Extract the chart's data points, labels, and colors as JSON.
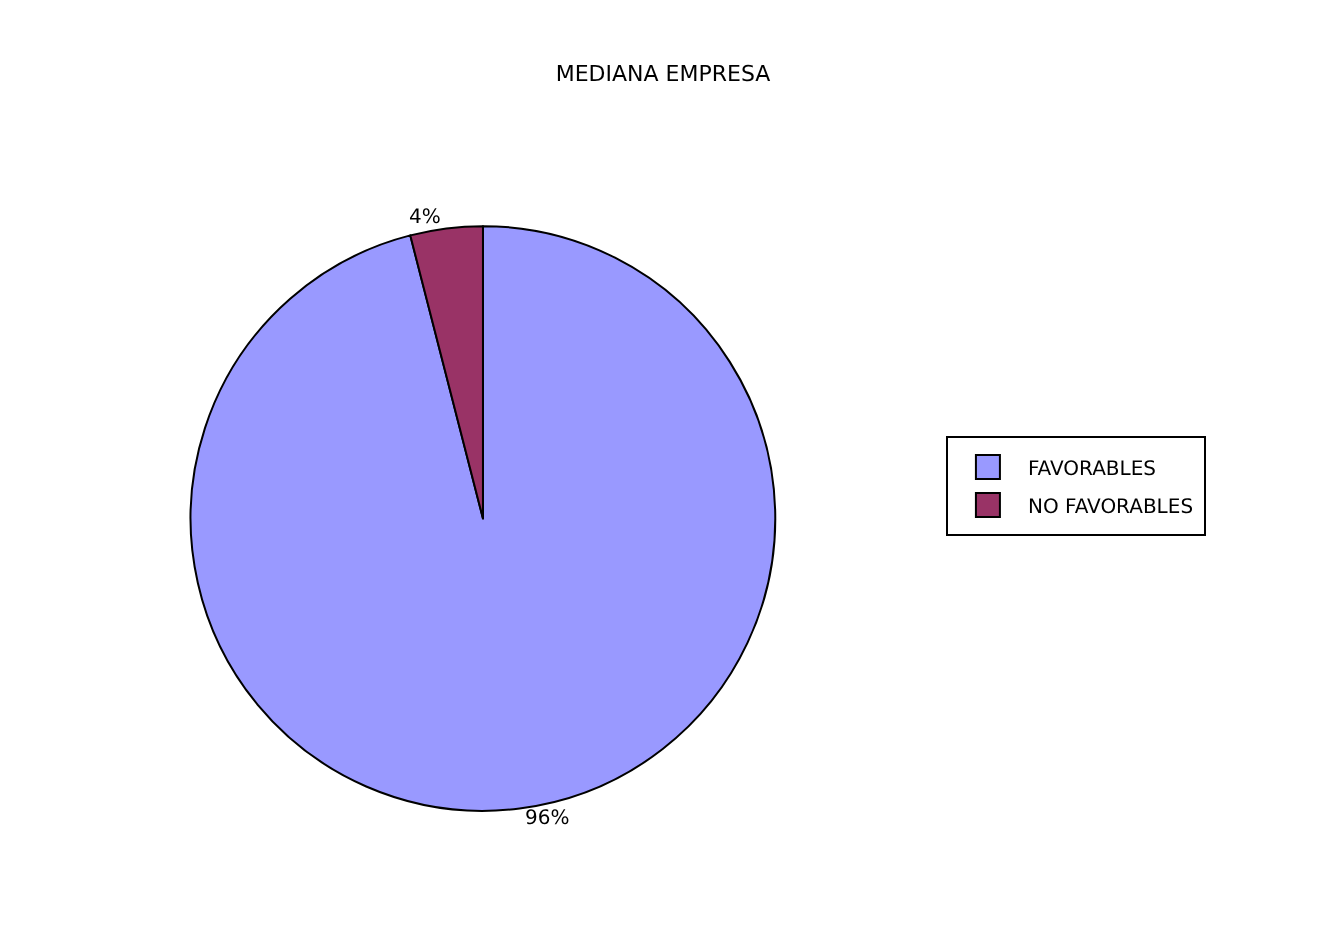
{
  "chart_data": {
    "type": "pie",
    "title": "MEDIANA EMPRESA",
    "categories": [
      "FAVORABLES",
      "NO FAVORABLES"
    ],
    "values": [
      96,
      4
    ],
    "colors": [
      "#9999ff",
      "#993366"
    ],
    "value_labels": [
      "96%",
      "4%"
    ],
    "legend": "right"
  }
}
